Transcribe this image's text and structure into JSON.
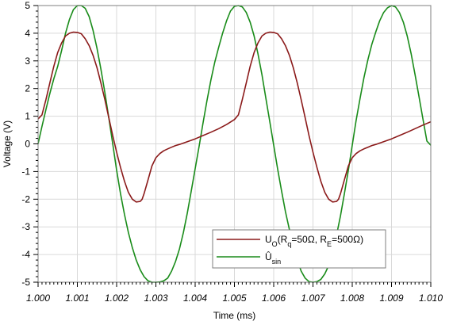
{
  "chart_data": {
    "type": "line",
    "title": "",
    "xlabel": "Time (ms)",
    "ylabel": "Voltage (V)",
    "xlim": [
      1.0,
      1.01
    ],
    "ylim": [
      -5,
      5
    ],
    "grid": true,
    "legend_position": "bottom-right",
    "x_tick_labels": [
      "1.000",
      "1.001",
      "1.002",
      "1.003",
      "1.004",
      "1.005",
      "1.006",
      "1.007",
      "1.008",
      "1.009",
      "1.010"
    ],
    "y_tick_labels": [
      "5",
      "4",
      "3",
      "2",
      "1",
      "0",
      "-1",
      "-2",
      "-3",
      "-4",
      "-5"
    ],
    "series": [
      {
        "name": "UO(Rq=50Ω, RE=500Ω)",
        "label_parts": [
          {
            "text": "U",
            "sub": false
          },
          {
            "text": "O",
            "sub": true
          },
          {
            "text": "(R",
            "sub": false
          },
          {
            "text": "q",
            "sub": true
          },
          {
            "text": "=50Ω, R",
            "sub": false
          },
          {
            "text": "E",
            "sub": true
          },
          {
            "text": "=500Ω)",
            "sub": false
          }
        ],
        "color": "#8b1a1a",
        "x": [
          1.0,
          1.0001,
          1.0002,
          1.0003,
          1.0004,
          1.0005,
          1.0006,
          1.0007,
          1.0008,
          1.0009,
          1.001,
          1.0011,
          1.0012,
          1.0013,
          1.0014,
          1.0015,
          1.0016,
          1.0017,
          1.0018,
          1.0019,
          1.002,
          1.0021,
          1.0022,
          1.0023,
          1.0024,
          1.0025,
          1.0026,
          1.00265,
          1.0027,
          1.0028,
          1.0029,
          1.003,
          1.0031,
          1.0032,
          1.0033,
          1.0034,
          1.0035,
          1.0036,
          1.0037,
          1.0038,
          1.0039,
          1.004,
          1.0042,
          1.0044,
          1.0046,
          1.0048,
          1.005,
          1.0051,
          1.0052,
          1.0053,
          1.0054,
          1.0055,
          1.0056,
          1.0057,
          1.0058,
          1.0059,
          1.006,
          1.0061,
          1.0062,
          1.0063,
          1.0064,
          1.0065,
          1.0066,
          1.0067,
          1.0068,
          1.0069,
          1.007,
          1.0071,
          1.0072,
          1.0073,
          1.0074,
          1.0075,
          1.0076,
          1.00765,
          1.0077,
          1.0078,
          1.0079,
          1.008,
          1.0081,
          1.0082,
          1.0083,
          1.0084,
          1.0085,
          1.0086,
          1.0087,
          1.0088,
          1.0089,
          1.009,
          1.0092,
          1.0094,
          1.0096,
          1.0098,
          1.01
        ],
        "y": [
          0.9,
          1.05,
          1.6,
          2.2,
          2.8,
          3.3,
          3.65,
          3.9,
          4.0,
          4.04,
          4.03,
          3.98,
          3.8,
          3.55,
          3.2,
          2.75,
          2.2,
          1.6,
          0.95,
          0.3,
          -0.3,
          -0.85,
          -1.35,
          -1.75,
          -2.0,
          -2.1,
          -2.08,
          -2.0,
          -1.8,
          -1.3,
          -0.8,
          -0.5,
          -0.35,
          -0.25,
          -0.18,
          -0.12,
          -0.06,
          -0.02,
          0.03,
          0.08,
          0.13,
          0.18,
          0.3,
          0.42,
          0.55,
          0.7,
          0.88,
          1.05,
          1.6,
          2.2,
          2.8,
          3.3,
          3.65,
          3.9,
          4.0,
          4.04,
          4.03,
          3.98,
          3.8,
          3.55,
          3.2,
          2.75,
          2.2,
          1.6,
          0.95,
          0.3,
          -0.3,
          -0.85,
          -1.35,
          -1.75,
          -2.0,
          -2.1,
          -2.08,
          -2.0,
          -1.8,
          -1.3,
          -0.8,
          -0.5,
          -0.35,
          -0.25,
          -0.18,
          -0.12,
          -0.06,
          -0.02,
          0.03,
          0.08,
          0.13,
          0.18,
          0.3,
          0.42,
          0.55,
          0.68,
          0.8
        ]
      },
      {
        "name": "Ûsin",
        "label_parts": [
          {
            "text": "Û",
            "sub": false
          },
          {
            "text": "sin",
            "sub": true
          }
        ],
        "color": "#1a8c1a",
        "x": [
          1.0,
          1.0001,
          1.0002,
          1.0003,
          1.0004,
          1.0005,
          1.0006,
          1.0007,
          1.0008,
          1.0009,
          1.001,
          1.0011,
          1.0012,
          1.0013,
          1.0014,
          1.0015,
          1.0016,
          1.0017,
          1.0018,
          1.0019,
          1.002,
          1.0021,
          1.0022,
          1.0023,
          1.0024,
          1.0025,
          1.0026,
          1.0027,
          1.0028,
          1.0029,
          1.003,
          1.0031,
          1.0032,
          1.0033,
          1.0034,
          1.0035,
          1.0036,
          1.0037,
          1.0038,
          1.0039,
          1.004,
          1.0041,
          1.0042,
          1.0043,
          1.0044,
          1.0045,
          1.0046,
          1.0047,
          1.0048,
          1.0049,
          1.005,
          1.0051,
          1.0052,
          1.0053,
          1.0054,
          1.0055,
          1.0056,
          1.0057,
          1.0058,
          1.0059,
          1.006,
          1.0061,
          1.0062,
          1.0063,
          1.0064,
          1.0065,
          1.0066,
          1.0067,
          1.0068,
          1.0069,
          1.007,
          1.0071,
          1.0072,
          1.0073,
          1.0074,
          1.0075,
          1.0076,
          1.0077,
          1.0078,
          1.0079,
          1.008,
          1.0081,
          1.0082,
          1.0083,
          1.0084,
          1.0085,
          1.0086,
          1.0087,
          1.0088,
          1.0089,
          1.009,
          1.0091,
          1.0092,
          1.0093,
          1.0094,
          1.0095,
          1.0096,
          1.0097,
          1.0098,
          1.0099,
          1.01
        ],
        "y": [
          0.0,
          0.63,
          1.24,
          1.82,
          2.35,
          2.8,
          3.38,
          4.0,
          4.5,
          4.85,
          5.0,
          5.0,
          4.9,
          4.6,
          4.1,
          3.45,
          2.7,
          1.85,
          0.95,
          0.0,
          -0.95,
          -1.8,
          -2.55,
          -3.2,
          -3.75,
          -4.2,
          -4.55,
          -4.8,
          -4.95,
          -5.0,
          -5.0,
          -4.99,
          -4.95,
          -4.85,
          -4.6,
          -4.25,
          -3.8,
          -3.2,
          -2.5,
          -1.7,
          -0.9,
          -0.1,
          0.75,
          1.55,
          2.3,
          2.95,
          3.5,
          4.0,
          4.45,
          4.8,
          4.97,
          5.0,
          4.95,
          4.75,
          4.4,
          3.9,
          3.25,
          2.5,
          1.65,
          0.8,
          -0.05,
          -0.9,
          -1.7,
          -2.45,
          -3.1,
          -3.7,
          -4.2,
          -4.6,
          -4.85,
          -4.98,
          -5.0,
          -4.98,
          -4.9,
          -4.7,
          -4.4,
          -3.9,
          -3.3,
          -2.6,
          -1.8,
          -0.95,
          -0.05,
          0.85,
          1.65,
          2.4,
          3.05,
          3.6,
          4.05,
          4.45,
          4.75,
          4.92,
          5.0,
          4.95,
          4.75,
          4.4,
          3.9,
          3.25,
          2.5,
          1.7,
          0.9,
          0.1,
          -0.05
        ]
      }
    ]
  }
}
